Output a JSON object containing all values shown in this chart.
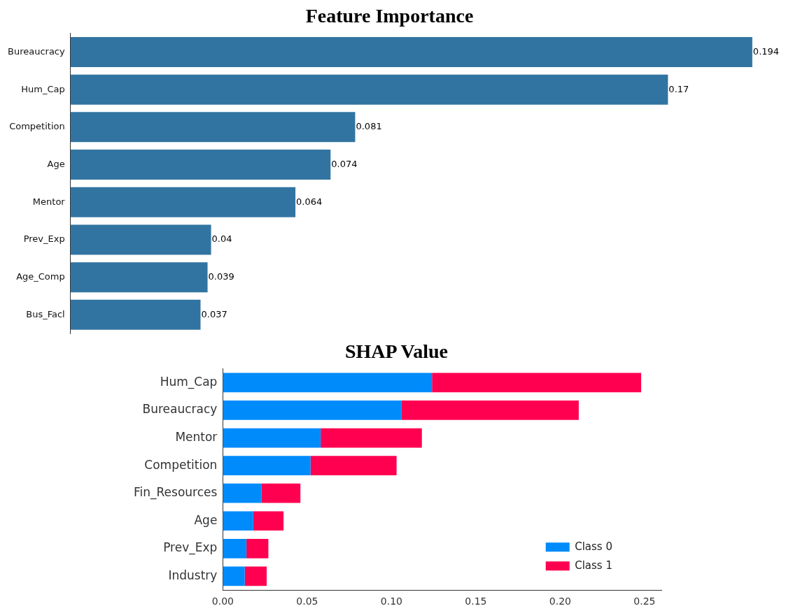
{
  "chart_data": [
    {
      "type": "bar",
      "title": "Feature Importance",
      "orientation": "horizontal",
      "categories": [
        "Bureaucracy",
        "Hum_Cap",
        "Competition",
        "Age",
        "Mentor",
        "Prev_Exp",
        "Age_Comp",
        "Bus_Facl"
      ],
      "values": [
        0.194,
        0.17,
        0.081,
        0.074,
        0.064,
        0.04,
        0.039,
        0.037
      ],
      "color": "#3274a1",
      "data_labels": true,
      "tick_labels": "y",
      "grid": false,
      "legend": false
    },
    {
      "type": "bar",
      "title": "SHAP Value",
      "orientation": "horizontal",
      "stacked": true,
      "categories": [
        "Hum_Cap",
        "Bureaucracy",
        "Mentor",
        "Competition",
        "Fin_Resources",
        "Age",
        "Prev_Exp",
        "Industry"
      ],
      "series": [
        {
          "name": "Class 0",
          "color": "#008bfb",
          "values": [
            0.124,
            0.106,
            0.058,
            0.052,
            0.023,
            0.018,
            0.014,
            0.013
          ]
        },
        {
          "name": "Class 1",
          "color": "#ff0051",
          "values": [
            0.124,
            0.105,
            0.06,
            0.051,
            0.023,
            0.018,
            0.013,
            0.013
          ]
        }
      ],
      "xlim": [
        0,
        0.26
      ],
      "xticks": [
        {
          "value": 0,
          "label": "0.00"
        },
        {
          "value": 0.05,
          "label": "0.05"
        },
        {
          "value": 0.1,
          "label": "0.10"
        },
        {
          "value": 0.15,
          "label": "0.15"
        },
        {
          "value": 0.2,
          "label": "0.20"
        },
        {
          "value": 0.25,
          "label": "0.25"
        }
      ],
      "grid": false,
      "legend": "bottom right"
    }
  ]
}
